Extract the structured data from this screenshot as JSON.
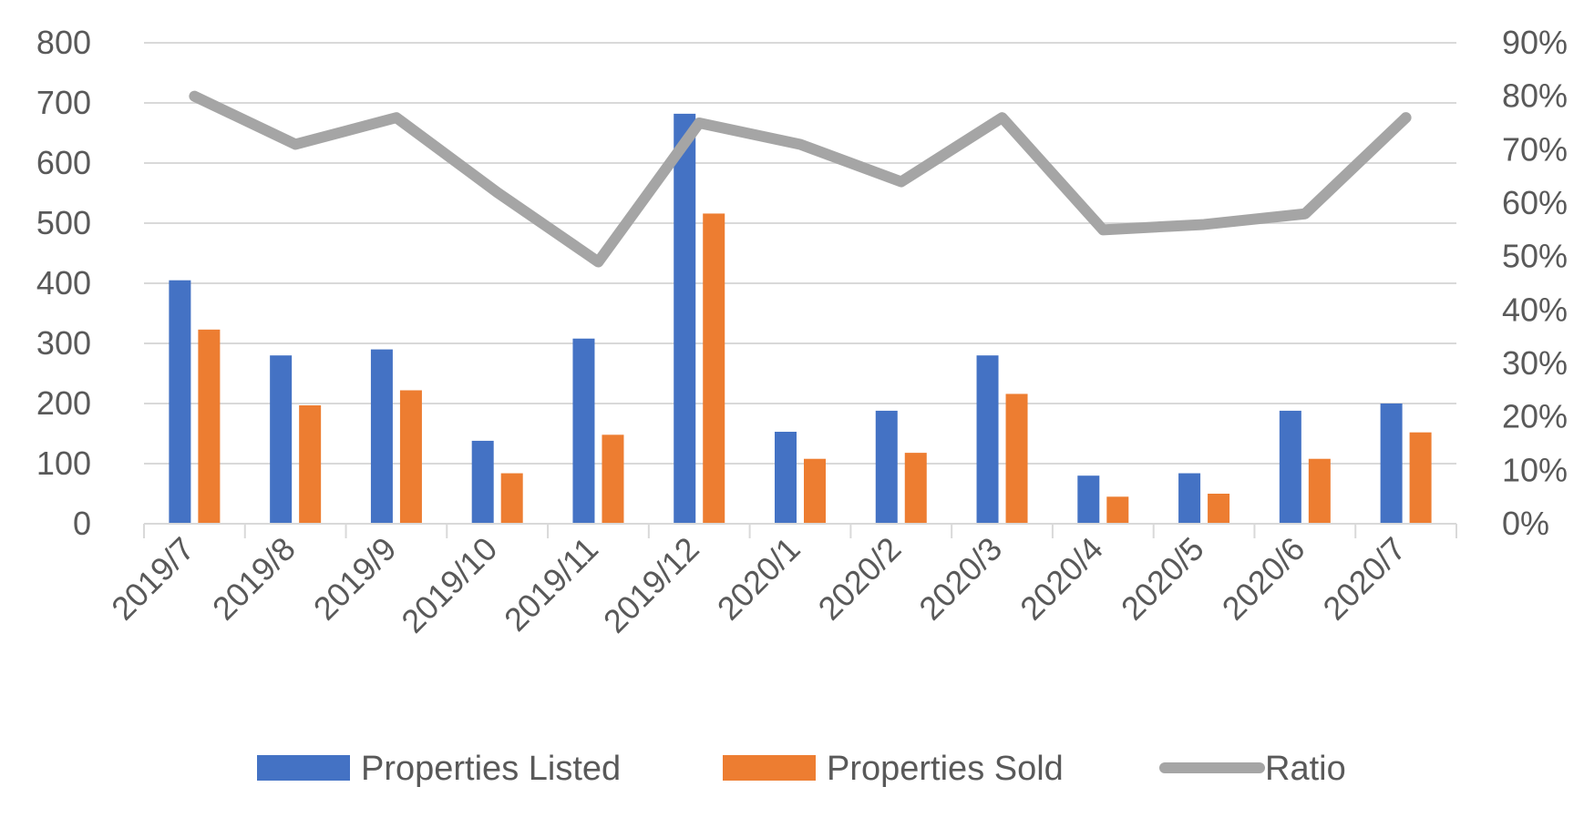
{
  "chart_data": {
    "type": "bar",
    "categories": [
      "2019/7",
      "2019/8",
      "2019/9",
      "2019/10",
      "2019/11",
      "2019/12",
      "2020/1",
      "2020/2",
      "2020/3",
      "2020/4",
      "2020/5",
      "2020/6",
      "2020/7"
    ],
    "series": [
      {
        "name": "Properties Listed",
        "type": "bar",
        "axis": "left",
        "color": "#4472C4",
        "values": [
          405,
          280,
          290,
          138,
          308,
          682,
          153,
          188,
          280,
          80,
          84,
          188,
          200
        ]
      },
      {
        "name": "Properties Sold",
        "type": "bar",
        "axis": "left",
        "color": "#ED7D31",
        "values": [
          323,
          197,
          222,
          84,
          148,
          516,
          108,
          118,
          216,
          45,
          50,
          108,
          152
        ]
      },
      {
        "name": "Ratio",
        "type": "line",
        "axis": "right",
        "color": "#A5A5A5",
        "values": [
          0.8,
          0.71,
          0.76,
          0.62,
          0.49,
          0.75,
          0.71,
          0.64,
          0.76,
          0.55,
          0.56,
          0.58,
          0.76
        ]
      }
    ],
    "y_left": {
      "min": 0,
      "max": 800,
      "step": 100,
      "ticks": [
        "0",
        "100",
        "200",
        "300",
        "400",
        "500",
        "600",
        "700",
        "800"
      ]
    },
    "y_right": {
      "min": 0,
      "max": 0.9,
      "step": 0.1,
      "ticks": [
        "0%",
        "10%",
        "20%",
        "30%",
        "40%",
        "50%",
        "60%",
        "70%",
        "80%",
        "90%"
      ]
    },
    "grid": true,
    "legend_position": "bottom",
    "title": "",
    "xlabel": "",
    "ylabel": ""
  }
}
